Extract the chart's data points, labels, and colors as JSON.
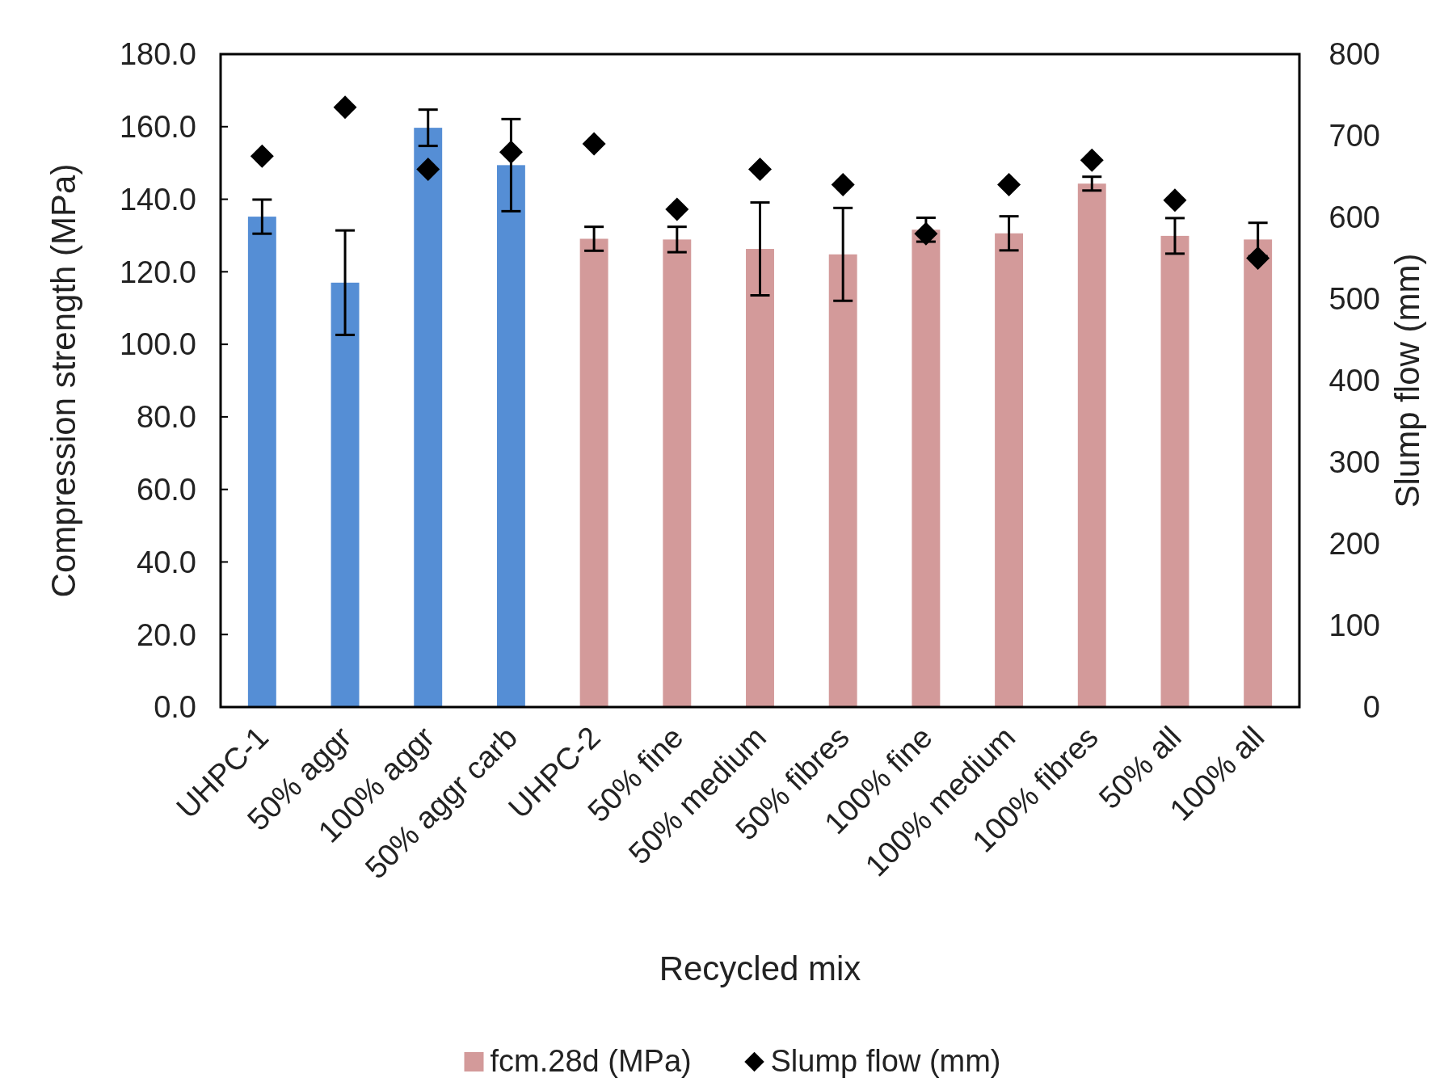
{
  "chart_data": {
    "type": "bar",
    "xlabel": "Recycled mix",
    "ylabel": "Compression strength (MPa)",
    "y2label": "Slump flow (mm)",
    "categories": [
      "UHPC-1",
      "50% aggr",
      "100% aggr",
      "50% aggr carb",
      "UHPC-2",
      "50% fine",
      "50% medium",
      "50% fibres",
      "100% fine",
      "100% medium",
      "100% fibres",
      "50% all",
      "100% all"
    ],
    "series": [
      {
        "name": "fcm.28d (MPa)",
        "color": "#d39a9a",
        "colors": [
          "#558ed5",
          "#558ed5",
          "#558ed5",
          "#558ed5",
          "#d39a9a",
          "#d39a9a",
          "#d39a9a",
          "#d39a9a",
          "#d39a9a",
          "#d39a9a",
          "#d39a9a",
          "#d39a9a",
          "#d39a9a"
        ],
        "values": [
          135.2,
          117.0,
          159.7,
          149.4,
          129.1,
          128.9,
          126.3,
          124.8,
          131.6,
          130.6,
          144.3,
          129.9,
          128.9
        ],
        "errors": [
          4.7,
          14.4,
          5.0,
          12.7,
          3.3,
          3.5,
          12.8,
          12.8,
          3.3,
          4.7,
          1.9,
          4.9,
          4.6
        ]
      },
      {
        "type": "scatter",
        "name": "Slump flow (mm)",
        "color": "#000000",
        "axis": "y2",
        "marker": "diamond",
        "values": [
          675,
          735,
          659,
          680,
          690,
          610,
          659,
          640,
          580,
          640,
          670,
          621,
          550
        ]
      }
    ],
    "ylim": [
      0,
      180
    ],
    "yticks": [
      {
        "value": 0,
        "label": "0.0"
      },
      {
        "value": 20,
        "label": "20.0"
      },
      {
        "value": 40,
        "label": "40.0"
      },
      {
        "value": 60,
        "label": "60.0"
      },
      {
        "value": 80,
        "label": "80.0"
      },
      {
        "value": 100,
        "label": "100.0"
      },
      {
        "value": 120,
        "label": "120.0"
      },
      {
        "value": 140,
        "label": "140.0"
      },
      {
        "value": 160,
        "label": "160.0"
      },
      {
        "value": 180,
        "label": "180.0"
      }
    ],
    "y2lim": [
      0,
      800
    ],
    "y2ticks": [
      0,
      100,
      200,
      300,
      400,
      500,
      600,
      700,
      800
    ],
    "grid": false,
    "legend": "bottom"
  }
}
